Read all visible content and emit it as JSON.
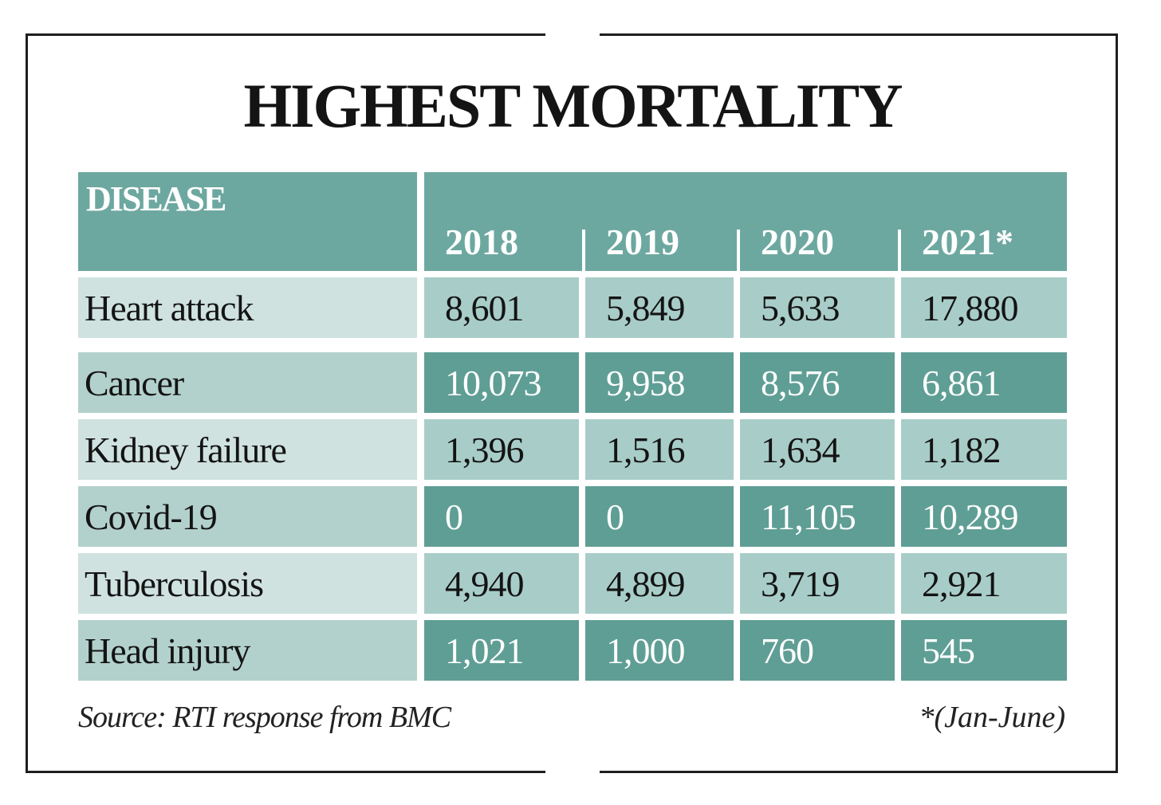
{
  "chart_data": {
    "type": "table",
    "title": "HIGHEST MORTALITY",
    "row_header": "DISEASE",
    "columns": [
      "2018",
      "2019",
      "2020",
      "2021*"
    ],
    "rows": [
      {
        "disease": "Heart attack",
        "values": [
          "8,601",
          "5,849",
          "5,633",
          "17,880"
        ]
      },
      {
        "disease": "Cancer",
        "values": [
          "10,073",
          "9,958",
          "8,576",
          "6,861"
        ]
      },
      {
        "disease": "Kidney failure",
        "values": [
          "1,396",
          "1,516",
          "1,634",
          "1,182"
        ]
      },
      {
        "disease": "Covid-19",
        "values": [
          "0",
          "0",
          "11,105",
          "10,289"
        ]
      },
      {
        "disease": "Tuberculosis",
        "values": [
          "4,940",
          "4,899",
          "3,719",
          "2,921"
        ]
      },
      {
        "disease": "Head injury",
        "values": [
          "1,021",
          "1,000",
          "760",
          "545"
        ]
      }
    ],
    "source": "Source: RTI response from BMC",
    "footnote": "*(Jan-June)"
  },
  "colors": {
    "header": "#6da8a0",
    "light_name": "#cfe2df",
    "light_value": "#a8cdc8",
    "dark_name": "#b3d1cc",
    "dark_value": "#5f9e95"
  }
}
